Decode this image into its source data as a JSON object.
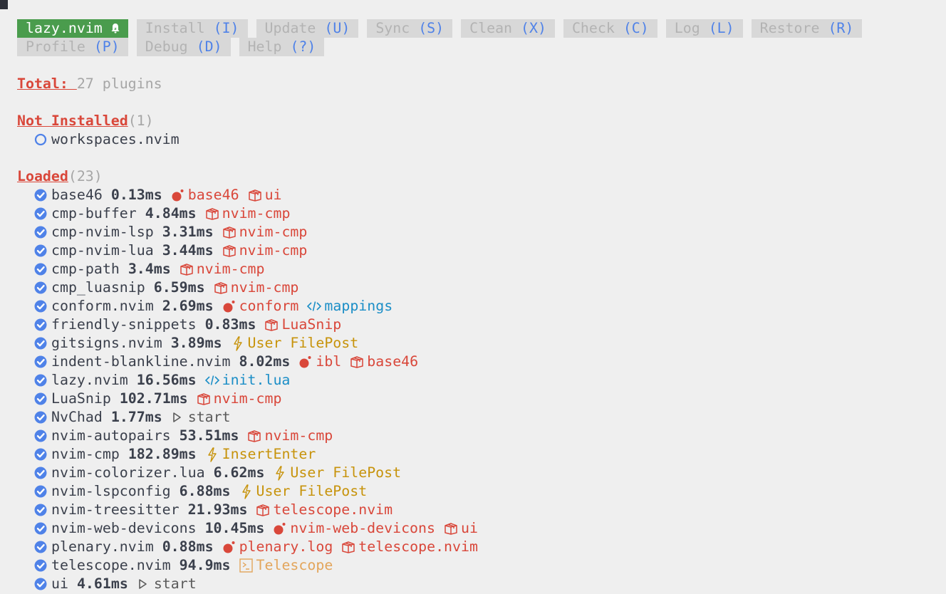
{
  "header": {
    "title": "lazy.nvim",
    "title_icon": "bell-icon",
    "accent": "#4a9c4d",
    "buttons_row1": [
      {
        "label": "Install",
        "key": "(I)"
      },
      {
        "label": "Update",
        "key": "(U)"
      },
      {
        "label": "Sync",
        "key": "(S)"
      },
      {
        "label": "Clean",
        "key": "(X)"
      },
      {
        "label": "Check",
        "key": "(C)"
      },
      {
        "label": "Log",
        "key": "(L)"
      },
      {
        "label": "Restore",
        "key": "(R)"
      }
    ],
    "buttons_row2": [
      {
        "label": "Profile",
        "key": "(P)"
      },
      {
        "label": "Debug",
        "key": "(D)"
      },
      {
        "label": "Help",
        "key": "(?)"
      }
    ]
  },
  "total": {
    "label": "Total: ",
    "value": "27 plugins"
  },
  "not_installed": {
    "label": "Not Installed",
    "count": "(1)",
    "items": [
      {
        "name": "workspaces.nvim",
        "icon": "circle-outline-icon"
      }
    ]
  },
  "loaded": {
    "label": "Loaded",
    "count": "(23)",
    "plugins": [
      {
        "name": "base46",
        "time": "0.13ms",
        "handlers": [
          {
            "icon": "bomb-icon",
            "text": "base46",
            "color": "red"
          },
          {
            "icon": "package-icon",
            "text": "ui",
            "color": "red"
          }
        ]
      },
      {
        "name": "cmp-buffer",
        "time": "4.84ms",
        "handlers": [
          {
            "icon": "package-icon",
            "text": "nvim-cmp",
            "color": "red"
          }
        ]
      },
      {
        "name": "cmp-nvim-lsp",
        "time": "3.31ms",
        "handlers": [
          {
            "icon": "package-icon",
            "text": "nvim-cmp",
            "color": "red"
          }
        ]
      },
      {
        "name": "cmp-nvim-lua",
        "time": "3.44ms",
        "handlers": [
          {
            "icon": "package-icon",
            "text": "nvim-cmp",
            "color": "red"
          }
        ]
      },
      {
        "name": "cmp-path",
        "time": "3.4ms",
        "handlers": [
          {
            "icon": "package-icon",
            "text": "nvim-cmp",
            "color": "red"
          }
        ]
      },
      {
        "name": "cmp_luasnip",
        "time": "6.59ms",
        "handlers": [
          {
            "icon": "package-icon",
            "text": "nvim-cmp",
            "color": "red"
          }
        ]
      },
      {
        "name": "conform.nvim",
        "time": "2.69ms",
        "handlers": [
          {
            "icon": "bomb-icon",
            "text": "conform",
            "color": "red"
          },
          {
            "icon": "code-icon",
            "text": "mappings",
            "color": "blue"
          }
        ]
      },
      {
        "name": "friendly-snippets",
        "time": "0.83ms",
        "handlers": [
          {
            "icon": "package-icon",
            "text": "LuaSnip",
            "color": "red"
          }
        ]
      },
      {
        "name": "gitsigns.nvim",
        "time": "3.89ms",
        "handlers": [
          {
            "icon": "lightning-icon",
            "text": "User FilePost",
            "color": "yellow"
          }
        ]
      },
      {
        "name": "indent-blankline.nvim",
        "time": "8.02ms",
        "handlers": [
          {
            "icon": "bomb-icon",
            "text": "ibl",
            "color": "red"
          },
          {
            "icon": "package-icon",
            "text": "base46",
            "color": "red"
          }
        ]
      },
      {
        "name": "lazy.nvim",
        "time": "16.56ms",
        "handlers": [
          {
            "icon": "code-icon",
            "text": "init.lua",
            "color": "blue"
          }
        ]
      },
      {
        "name": "LuaSnip",
        "time": "102.71ms",
        "handlers": [
          {
            "icon": "package-icon",
            "text": "nvim-cmp",
            "color": "red"
          }
        ]
      },
      {
        "name": "NvChad",
        "time": "1.77ms",
        "handlers": [
          {
            "icon": "play-icon",
            "text": "start",
            "color": "gray"
          }
        ]
      },
      {
        "name": "nvim-autopairs",
        "time": "53.51ms",
        "handlers": [
          {
            "icon": "package-icon",
            "text": "nvim-cmp",
            "color": "red"
          }
        ]
      },
      {
        "name": "nvim-cmp",
        "time": "182.89ms",
        "handlers": [
          {
            "icon": "lightning-icon",
            "text": "InsertEnter",
            "color": "yellow"
          }
        ]
      },
      {
        "name": "nvim-colorizer.lua",
        "time": "6.62ms",
        "handlers": [
          {
            "icon": "lightning-icon",
            "text": "User FilePost",
            "color": "yellow"
          }
        ]
      },
      {
        "name": "nvim-lspconfig",
        "time": "6.88ms",
        "handlers": [
          {
            "icon": "lightning-icon",
            "text": "User FilePost",
            "color": "yellow"
          }
        ]
      },
      {
        "name": "nvim-treesitter",
        "time": "21.93ms",
        "handlers": [
          {
            "icon": "package-icon",
            "text": "telescope.nvim",
            "color": "red"
          }
        ]
      },
      {
        "name": "nvim-web-devicons",
        "time": "10.45ms",
        "handlers": [
          {
            "icon": "bomb-icon",
            "text": "nvim-web-devicons",
            "color": "red"
          },
          {
            "icon": "package-icon",
            "text": "ui",
            "color": "red"
          }
        ]
      },
      {
        "name": "plenary.nvim",
        "time": "0.88ms",
        "handlers": [
          {
            "icon": "bomb-icon",
            "text": "plenary.log",
            "color": "red"
          },
          {
            "icon": "package-icon",
            "text": "telescope.nvim",
            "color": "red"
          }
        ]
      },
      {
        "name": "telescope.nvim",
        "time": "94.9ms",
        "handlers": [
          {
            "icon": "terminal-icon",
            "text": "Telescope",
            "color": "orange"
          }
        ]
      },
      {
        "name": "ui",
        "time": "4.61ms",
        "handlers": [
          {
            "icon": "play-icon",
            "text": "start",
            "color": "gray"
          }
        ]
      }
    ]
  },
  "colors": {
    "red": "#d9473a",
    "blue": "#1b8ec7",
    "yellow": "#c7930b",
    "orange": "#e3a55b",
    "check": "#4f82e8",
    "bg": "#efefef"
  }
}
